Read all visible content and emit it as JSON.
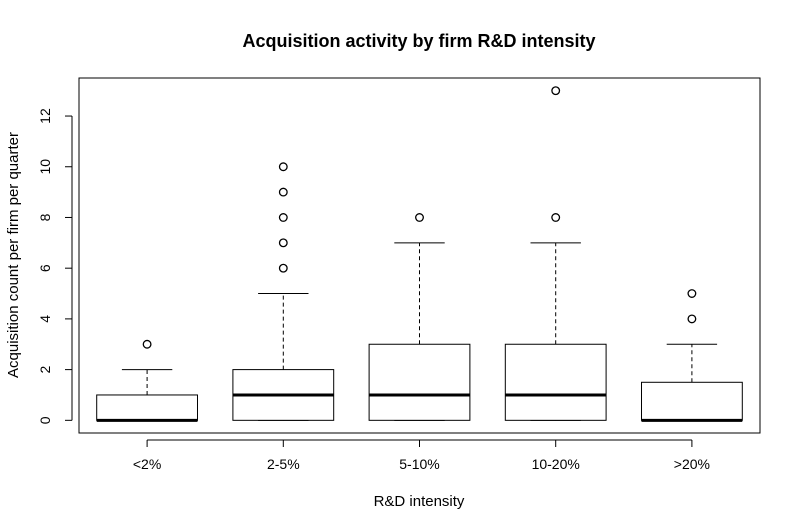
{
  "chart_data": {
    "type": "box",
    "title": "Acquisition activity by firm R&D intensity",
    "xlabel": "R&D intensity",
    "ylabel": "Acquisition count per firm per quarter",
    "ylim": [
      -0.5,
      13.5
    ],
    "yticks": [
      0,
      2,
      4,
      6,
      8,
      10,
      12
    ],
    "categories": [
      "<2%",
      "2-5%",
      "5-10%",
      "10-20%",
      ">20%"
    ],
    "boxes": [
      {
        "category": "<2%",
        "whisker_low": 0,
        "q1": 0,
        "median": 0,
        "q3": 1,
        "whisker_high": 2,
        "outliers": [
          3
        ]
      },
      {
        "category": "2-5%",
        "whisker_low": 0,
        "q1": 0,
        "median": 1,
        "q3": 2,
        "whisker_high": 5,
        "outliers": [
          6,
          7,
          8,
          9,
          10
        ]
      },
      {
        "category": "5-10%",
        "whisker_low": 0,
        "q1": 0,
        "median": 1,
        "q3": 3,
        "whisker_high": 7,
        "outliers": [
          8
        ]
      },
      {
        "category": "10-20%",
        "whisker_low": 0,
        "q1": 0,
        "median": 1,
        "q3": 3,
        "whisker_high": 7,
        "outliers": [
          8,
          13
        ]
      },
      {
        "category": ">20%",
        "whisker_low": 0,
        "q1": 0,
        "median": 0,
        "q3": 1.5,
        "whisker_high": 3,
        "outliers": [
          4,
          5
        ]
      }
    ],
    "grid": false,
    "legend": "none"
  }
}
